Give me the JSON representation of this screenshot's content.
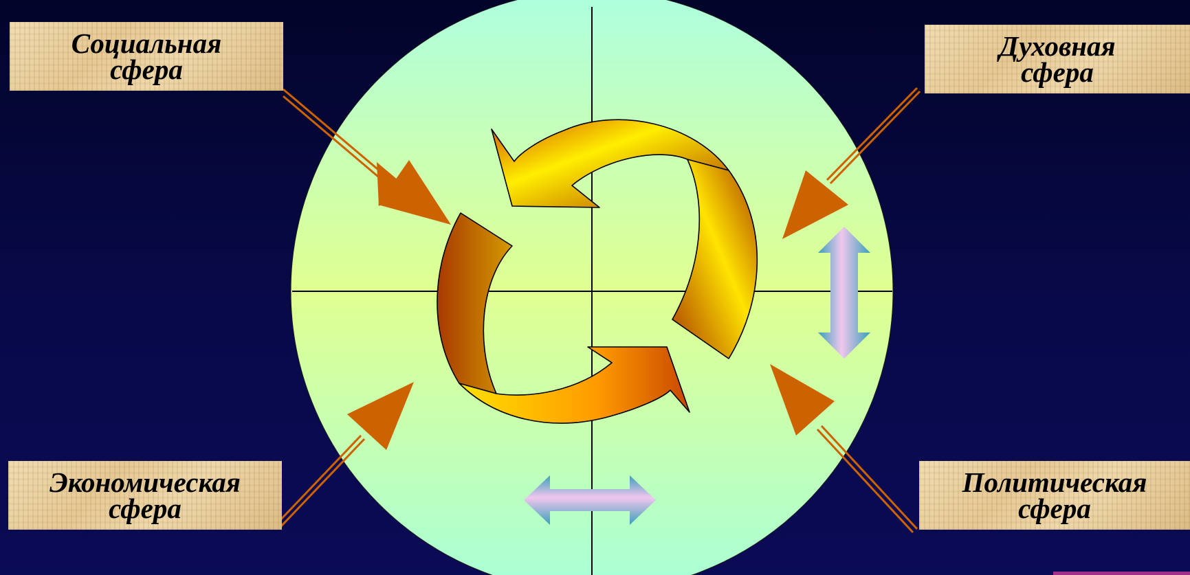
{
  "spheres": {
    "social": {
      "line1": "Социальная",
      "line2": "сфера"
    },
    "spiritual": {
      "line1": "Духовная",
      "line2": "сфера"
    },
    "economic": {
      "line1": "Экономическая",
      "line2": "сфера"
    },
    "political": {
      "line1": "Политическая",
      "line2": "сфера"
    }
  },
  "colors": {
    "background": "#05063a",
    "circle_top": "#adffe0",
    "circle_mid": "#e0ff90",
    "circle_bottom": "#a8ffd8",
    "pointer_arrow": "#cc6200",
    "cycle_arrow_light": "#ffee00",
    "cycle_arrow_dark": "#a83a00",
    "double_arrow_pink": "#f1c6ee",
    "double_arrow_teal": "#3aa0b8"
  },
  "icons": {
    "center": "cycle-arrows",
    "pointers": "inward-arrows",
    "vertical": "up-down-double-arrow",
    "horizontal": "left-right-double-arrow"
  }
}
